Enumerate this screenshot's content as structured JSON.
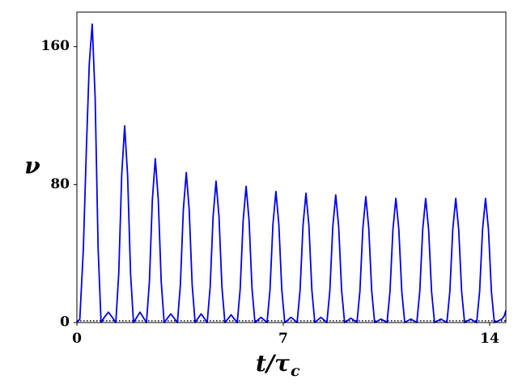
{
  "chart_data": {
    "type": "line",
    "xlabel": {
      "main": "t/τ",
      "sub": "c"
    },
    "ylabel": "ν",
    "xlim": [
      0,
      14.55
    ],
    "ylim": [
      0,
      180
    ],
    "xticks": [
      0,
      7,
      14
    ],
    "yticks": [
      0,
      80,
      160
    ],
    "grid": false,
    "hline": {
      "value": 1,
      "color": "#000000",
      "style": "dotted"
    },
    "series": [
      {
        "name": "ν",
        "color": "#0000ee",
        "x": [
          0,
          0.1,
          0.22,
          0.32,
          0.42,
          0.52,
          0.62,
          0.72,
          0.82,
          0.93,
          1.07,
          1.2,
          1.32,
          1.42,
          1.52,
          1.62,
          1.72,
          1.82,
          1.92,
          2.03,
          2.14,
          2.25,
          2.36,
          2.46,
          2.56,
          2.66,
          2.76,
          2.86,
          2.96,
          3.07,
          3.185,
          3.3,
          3.41,
          3.51,
          3.61,
          3.71,
          3.81,
          3.91,
          4.01,
          4.11,
          4.215,
          4.32,
          4.42,
          4.52,
          4.62,
          4.72,
          4.82,
          4.92,
          5.02,
          5.13,
          5.23,
          5.33,
          5.44,
          5.54,
          5.64,
          5.74,
          5.84,
          5.94,
          6.04,
          6.14,
          6.245,
          6.35,
          6.45,
          6.55,
          6.65,
          6.75,
          6.85,
          6.95,
          7.05,
          7.16,
          7.26,
          7.37,
          7.47,
          7.57,
          7.67,
          7.77,
          7.87,
          7.97,
          8.07,
          8.17,
          8.275,
          8.38,
          8.48,
          8.58,
          8.68,
          8.78,
          8.88,
          8.98,
          9.08,
          9.19,
          9.29,
          9.4,
          9.5,
          9.6,
          9.7,
          9.8,
          9.9,
          10.0,
          10.1,
          10.21,
          10.31,
          10.42,
          10.52,
          10.62,
          10.72,
          10.82,
          10.92,
          11.02,
          11.12,
          11.22,
          11.325,
          11.43,
          11.53,
          11.63,
          11.73,
          11.83,
          11.93,
          12.03,
          12.13,
          12.24,
          12.34,
          12.45,
          12.55,
          12.65,
          12.75,
          12.85,
          12.95,
          13.05,
          13.15,
          13.25,
          13.355,
          13.46,
          13.56,
          13.66,
          13.76,
          13.86,
          13.96,
          14.06,
          14.16,
          14.3,
          14.42,
          14.5,
          14.55
        ],
        "values": [
          0,
          2,
          43,
          100,
          150,
          173,
          130,
          43,
          0,
          3,
          6,
          3,
          0,
          28.5,
          85.5,
          114,
          85.5,
          28.5,
          0,
          3,
          6,
          3,
          0,
          23.75,
          71.25,
          95,
          71.25,
          23.75,
          0,
          2.5,
          5,
          2.5,
          0,
          21.75,
          65.25,
          87,
          65.25,
          21.75,
          0,
          2.5,
          5,
          2.5,
          0,
          20.5,
          61.5,
          82,
          61.5,
          20.5,
          0,
          2.25,
          4.5,
          2.25,
          0,
          19.75,
          59.25,
          79,
          59.25,
          19.75,
          0,
          1.5,
          3,
          1.5,
          0,
          19,
          57,
          76,
          57,
          19,
          0,
          1.5,
          3,
          1.5,
          0,
          18.75,
          56.25,
          75,
          56.25,
          18.75,
          0,
          1.5,
          3,
          1.5,
          0,
          18.5,
          55.5,
          74,
          55.5,
          18.5,
          0,
          1.25,
          2.5,
          1.25,
          0,
          18.25,
          54.75,
          73,
          54.75,
          18.25,
          0,
          1,
          2,
          1,
          0,
          18,
          54,
          72,
          54,
          18,
          0,
          1,
          2,
          1,
          0,
          18,
          54,
          72,
          54,
          18,
          0,
          1,
          2,
          1,
          0,
          18,
          54,
          72,
          54,
          18,
          0,
          1,
          2,
          1,
          0,
          18,
          54,
          72,
          54,
          18,
          0,
          1,
          2,
          4,
          7
        ]
      }
    ]
  }
}
